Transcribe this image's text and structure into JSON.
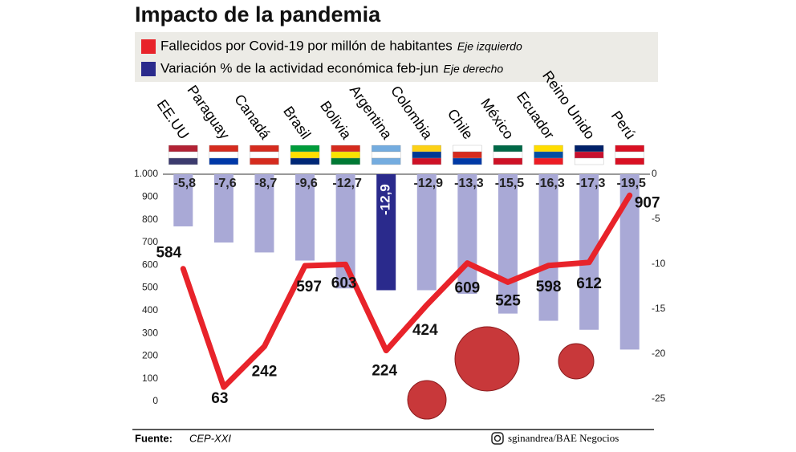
{
  "chart_data": {
    "type": "bar_line",
    "title": "Impacto de la pandemia",
    "categories": [
      "EE.UU",
      "Paraguay",
      "Canadá",
      "Brasil",
      "Bolivia",
      "Argentina",
      "Colombia",
      "Chile",
      "México",
      "Ecuador",
      "Reino Unido",
      "Perú"
    ],
    "series": [
      {
        "name": "Fallecidos por Covid-19 por millón de habitantes",
        "note": "Eje izquierdo",
        "type": "line",
        "axis": "y",
        "color": "#e8232a",
        "values": [
          584,
          63,
          242,
          597,
          603,
          224,
          424,
          609,
          525,
          598,
          612,
          907
        ]
      },
      {
        "name": "Variación % de la actividad económica feb-jun",
        "note": "Eje derecho",
        "type": "bar",
        "axis": "y2",
        "color": "#a9a9d6",
        "colors": [
          "#a9a9d6",
          "#a9a9d6",
          "#a9a9d6",
          "#a9a9d6",
          "#a9a9d6",
          "#2a2a8c",
          "#a9a9d6",
          "#a9a9d6",
          "#a9a9d6",
          "#a9a9d6",
          "#a9a9d6",
          "#a9a9d6"
        ],
        "legend_color": "#2a2a8c",
        "values": [
          -5.8,
          -7.6,
          -8.7,
          -9.6,
          -12.7,
          -12.9,
          -12.9,
          -13.3,
          -15.5,
          -16.3,
          -17.3,
          -19.5
        ],
        "value_labels": [
          "-5,8",
          "-7,6",
          "-8,7",
          "-9,6",
          "-12,7",
          "-12,9",
          "-12,9",
          "-13,3",
          "-15,5",
          "-16,3",
          "-17,3",
          "-19,5"
        ]
      }
    ],
    "ylim": [
      0,
      1000
    ],
    "yticks": [
      0,
      100,
      200,
      300,
      400,
      500,
      600,
      700,
      800,
      900,
      {
        "value": 1000,
        "label": "1.000"
      }
    ],
    "y2lim": [
      -25,
      0
    ],
    "y2ticks": [
      -25,
      -20,
      -15,
      -10,
      -5,
      0
    ],
    "source_label": "Fuente:",
    "source": "CEP-XXI",
    "credit": "sginandrea/BAE Negocios"
  }
}
